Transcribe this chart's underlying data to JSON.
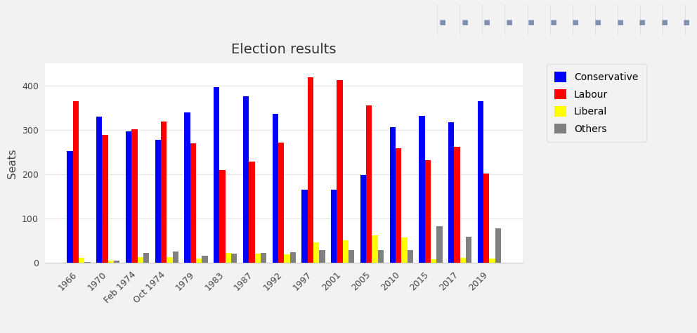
{
  "title": "Election results",
  "ylabel": "Seats",
  "years": [
    "1966",
    "1970",
    "Feb 1974",
    "Oct 1974",
    "1979",
    "1983",
    "1987",
    "1992",
    "1997",
    "2001",
    "2005",
    "2010",
    "2015",
    "2017",
    "2019"
  ],
  "conservative": [
    253,
    330,
    297,
    277,
    339,
    397,
    376,
    336,
    165,
    166,
    198,
    306,
    331,
    317,
    365
  ],
  "labour": [
    364,
    288,
    301,
    319,
    269,
    209,
    229,
    271,
    418,
    412,
    355,
    258,
    232,
    262,
    202
  ],
  "liberal": [
    12,
    6,
    14,
    13,
    11,
    23,
    22,
    20,
    46,
    52,
    62,
    57,
    8,
    12,
    11
  ],
  "others": [
    3,
    6,
    23,
    26,
    16,
    21,
    23,
    24,
    30,
    29,
    30,
    29,
    83,
    59,
    78
  ],
  "colors": {
    "conservative": "#0000ff",
    "labour": "#ff0000",
    "liberal": "#ffff00",
    "others": "#808080"
  },
  "ylim": [
    0,
    450
  ],
  "yticks": [
    0,
    100,
    200,
    300,
    400
  ],
  "page_bg": "#f2f2f2",
  "plot_bg": "#ffffff",
  "grid_color": "#e8e8e8",
  "title_fontsize": 14,
  "axis_fontsize": 10,
  "tick_fontsize": 9,
  "legend_labels": [
    "Conservative",
    "Labour",
    "Liberal",
    "Others"
  ],
  "toolbar_color": "#8899bb"
}
